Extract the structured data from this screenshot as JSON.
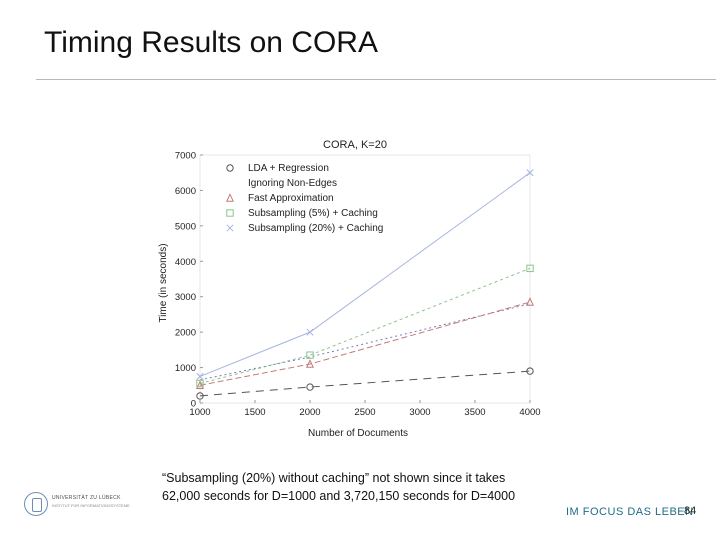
{
  "slide": {
    "title": "Timing Results on CORA",
    "footnote_line1": "“Subsampling (20%) without caching” not shown since it takes",
    "footnote_line2": "62,000 seconds for D=1000 and 3,720,150 seconds for D=4000",
    "footer_logo_text": "UNIVERSITÄT ZU LÜBECK",
    "footer_logo_sub": "INSTITUT FÜR INFORMATIONSSYSTEME",
    "tagline": "IM FOCUS DAS LEBEN",
    "page_number": "84"
  },
  "chart_data": {
    "type": "line",
    "title": "CORA, K=20",
    "xlabel": "Number of Documents",
    "ylabel": "Time (in seconds)",
    "x": [
      1000,
      2000,
      4000
    ],
    "xlim": [
      1000,
      4000
    ],
    "ylim": [
      0,
      7000
    ],
    "x_ticks": [
      1000,
      1500,
      2000,
      2500,
      3000,
      3500,
      4000
    ],
    "y_ticks": [
      0,
      1000,
      2000,
      3000,
      4000,
      5000,
      6000,
      7000
    ],
    "legend_position": "top-left",
    "series": [
      {
        "name": "LDA + Regression",
        "marker": "circle",
        "dash": "8,6",
        "color": "#555555",
        "values": [
          200,
          450,
          900
        ]
      },
      {
        "name": "Ignoring Non-Edges",
        "marker": "none",
        "dash": "2,3",
        "color": "#7a7ab8",
        "values": [
          650,
          1300,
          2800
        ]
      },
      {
        "name": "Fast Approximation",
        "marker": "triangle",
        "dash": "6,3",
        "color": "#c47a7a",
        "values": [
          500,
          1100,
          2850
        ]
      },
      {
        "name": "Subsampling (5%) + Caching",
        "marker": "square",
        "dash": "3,3",
        "color": "#8cc48c",
        "values": [
          550,
          1350,
          3800
        ]
      },
      {
        "name": "Subsampling (20%) + Caching",
        "marker": "x",
        "dash": "",
        "color": "#a7b4e0",
        "values": [
          750,
          2000,
          6500
        ]
      }
    ]
  }
}
